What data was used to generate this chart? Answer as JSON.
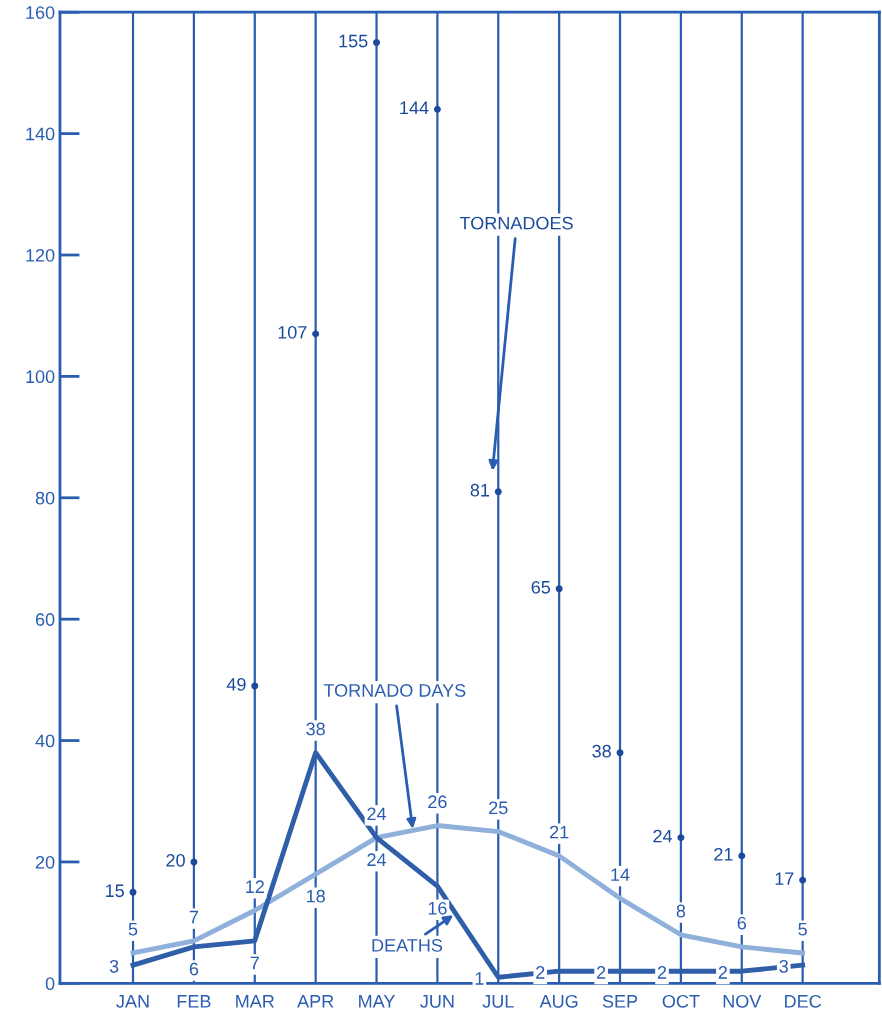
{
  "chart_data": {
    "type": "line",
    "categories": [
      "JAN",
      "FEB",
      "MAR",
      "APR",
      "MAY",
      "JUN",
      "JUL",
      "AUG",
      "SEP",
      "OCT",
      "NOV",
      "DEC"
    ],
    "series": [
      {
        "name": "TORNADOES",
        "type": "scatter",
        "marker": "circle",
        "color": "#1a4a9c",
        "values": [
          15,
          20,
          49,
          107,
          155,
          144,
          81,
          65,
          38,
          24,
          21,
          17
        ]
      },
      {
        "name": "TORNADO DAYS",
        "color": "#8fb0da",
        "values": [
          5,
          7,
          12,
          18,
          24,
          26,
          25,
          21,
          14,
          8,
          6,
          5
        ]
      },
      {
        "name": "DEATHS",
        "color": "#2e5fa8",
        "values": [
          3,
          6,
          7,
          38,
          24,
          16,
          1,
          2,
          2,
          2,
          2,
          3
        ]
      }
    ],
    "ylim": [
      0,
      160
    ],
    "yticks": [
      0,
      20,
      40,
      60,
      80,
      100,
      120,
      140,
      160
    ],
    "grid": "x",
    "data_labels": true,
    "line_style": "solid"
  }
}
